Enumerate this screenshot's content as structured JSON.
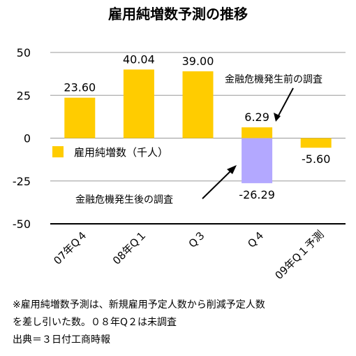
{
  "chart_data": {
    "type": "bar",
    "title": "雇用純増数予測の推移",
    "categories": [
      "07年Q４",
      "08年Q１",
      "Q３",
      "Q４",
      "09年Q１予測"
    ],
    "series": [
      {
        "name": "雇用純増数（千人）",
        "values": [
          23.6,
          40.04,
          39.0,
          6.29,
          -5.6
        ]
      }
    ],
    "extra_bar": {
      "category_index": 3,
      "value": -26.29
    },
    "data_labels": [
      "23.60",
      "40.04",
      "39.00",
      "6.29",
      "-5.60",
      "-26.29"
    ],
    "ylim": [
      -50,
      50
    ],
    "yticks": [
      50,
      25,
      0,
      -25,
      -50
    ],
    "grid": true,
    "legend": "center-left",
    "colors": {
      "main": "#ffcc00",
      "extra": "#b3a8ff",
      "grid": "#999999"
    },
    "annotations": {
      "before": "金融危機発生前の調査",
      "after": "金融危機発生後の調査"
    }
  },
  "notes": [
    "※雇用純増数予測は、新規雇用予定人数から削減予定人数",
    "を差し引いた数。０８年Q２は未調査",
    "出典＝３日付工商時報"
  ]
}
